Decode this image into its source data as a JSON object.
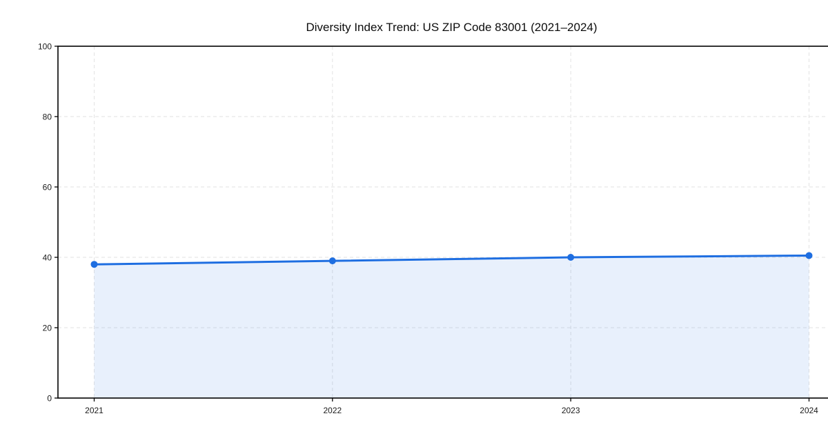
{
  "chart_data": {
    "type": "area",
    "title": "Diversity Index Trend: US ZIP Code 83001 (2021–2024)",
    "categories": [
      "2021",
      "2022",
      "2023",
      "2024"
    ],
    "series": [
      {
        "name": "Diversity Index",
        "values": [
          38.0,
          39.0,
          40.0,
          40.5
        ]
      }
    ],
    "xlabel": "",
    "ylabel": "",
    "ylim": [
      0,
      100
    ],
    "yticks": [
      0,
      20,
      40,
      60,
      80,
      100
    ],
    "grid": "dashed",
    "legend_position": "none",
    "colors": {
      "line": "#1e6ee1",
      "marker": "#1e6ee1",
      "fill": "#1e6ee1",
      "fill_opacity": 0.1,
      "grid": "#e2e2e2",
      "axis": "#000000",
      "text": "#1a1a1a",
      "title": "#0c0c0c",
      "background": "#ffffff"
    }
  }
}
